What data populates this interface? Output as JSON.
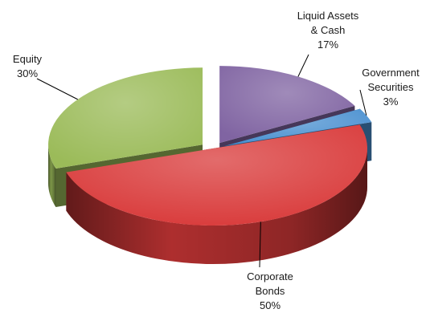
{
  "chart_data": {
    "type": "pie",
    "variant": "3d-exploded",
    "slices": [
      {
        "label_lines": [
          "Liquid Assets",
          "& Cash"
        ],
        "value": 17,
        "value_label": "17%",
        "color": "#8064a2"
      },
      {
        "label_lines": [
          "Government",
          "Securities"
        ],
        "value": 3,
        "value_label": "3%",
        "color": "#4a90d0"
      },
      {
        "label_lines": [
          "Corporate",
          "Bonds"
        ],
        "value": 50,
        "value_label": "50%",
        "color": "#d93a3a"
      },
      {
        "label_lines": [
          "Equity"
        ],
        "value": 30,
        "value_label": "30%",
        "color": "#9bbb59"
      }
    ]
  }
}
